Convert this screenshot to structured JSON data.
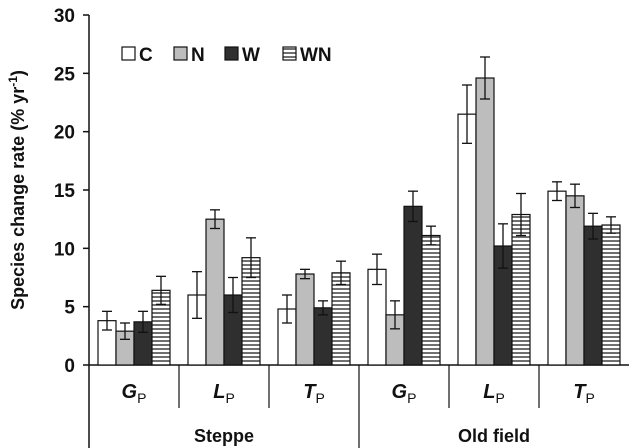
{
  "chart_data": {
    "type": "bar",
    "ylabel": "Species change rate (% yr",
    "ylabel_sup": "-1",
    "ylabel_close": ")",
    "ylim": [
      0,
      30
    ],
    "yticks": [
      "0",
      "5",
      "10",
      "15",
      "20",
      "25",
      "30"
    ],
    "grid": false,
    "legend_position": "top-left",
    "categories": [
      {
        "main": "G",
        "sub": "P",
        "group": "Steppe"
      },
      {
        "main": "L",
        "sub": "P",
        "group": "Steppe"
      },
      {
        "main": "T",
        "sub": "P",
        "group": "Steppe"
      },
      {
        "main": "G",
        "sub": "P",
        "group": "Old field"
      },
      {
        "main": "L",
        "sub": "P",
        "group": "Old field"
      },
      {
        "main": "T",
        "sub": "P",
        "group": "Old field"
      }
    ],
    "groups": [
      "Steppe",
      "Old field"
    ],
    "series": [
      {
        "name": "C",
        "fill": "#ffffff",
        "pattern": "none",
        "values": [
          3.8,
          6.0,
          4.8,
          8.2,
          21.5,
          14.9
        ],
        "errors": [
          0.8,
          2.0,
          1.2,
          1.3,
          2.5,
          0.8
        ]
      },
      {
        "name": "N",
        "fill": "#bdbdbd",
        "pattern": "none",
        "values": [
          2.9,
          12.5,
          7.8,
          4.3,
          24.6,
          14.5
        ],
        "errors": [
          0.7,
          0.8,
          0.4,
          1.2,
          1.8,
          1.0
        ]
      },
      {
        "name": "W",
        "fill": "#2f2f2f",
        "pattern": "none",
        "values": [
          3.7,
          6.0,
          4.9,
          13.6,
          10.2,
          11.9
        ],
        "errors": [
          0.9,
          1.5,
          0.6,
          1.3,
          1.9,
          1.1
        ]
      },
      {
        "name": "WN",
        "fill": "#ffffff",
        "pattern": "horizontal-lines",
        "values": [
          6.4,
          9.2,
          7.9,
          11.1,
          12.9,
          12.0
        ],
        "errors": [
          1.2,
          1.7,
          1.0,
          0.8,
          1.8,
          0.7
        ]
      }
    ]
  }
}
